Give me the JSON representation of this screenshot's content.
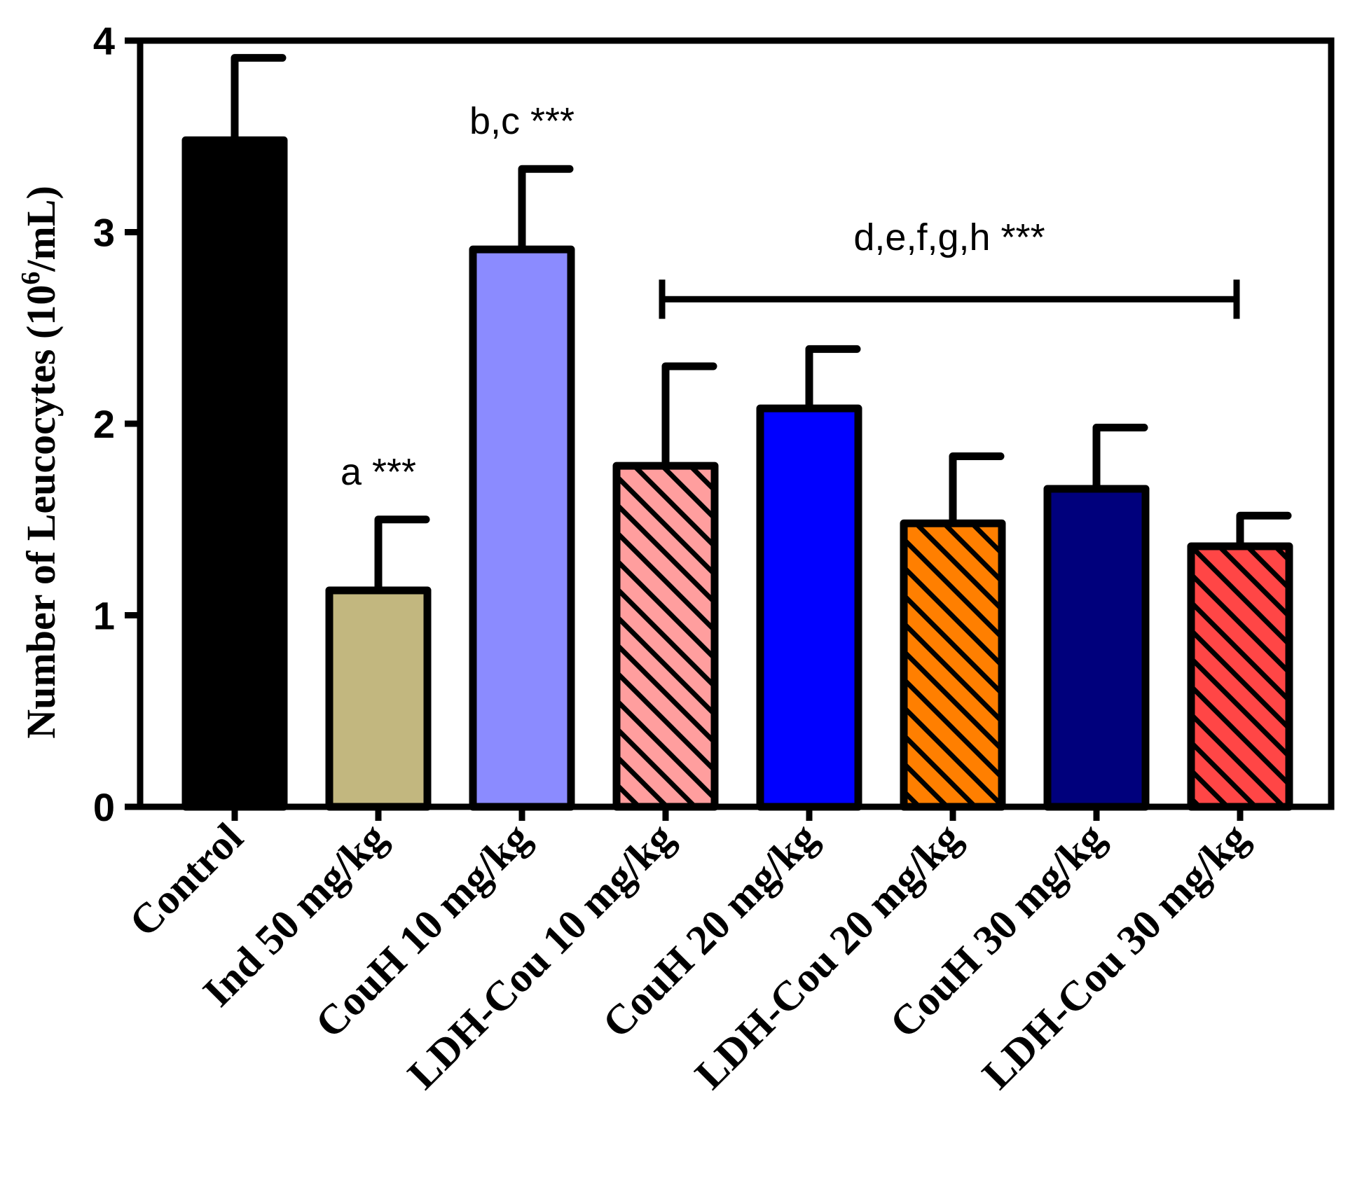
{
  "chart_data": {
    "type": "bar",
    "title": "",
    "xlabel": "",
    "ylabel": "Number of Leucocytes (10",
    "ylabel_sup": "6",
    "ylabel_tail": "/mL)",
    "ylim": [
      0,
      4
    ],
    "yticks": [
      "0",
      "1",
      "2",
      "3",
      "4"
    ],
    "categories": [
      "Control",
      "Ind 50 mg/kg",
      "CouH 10 mg/kg",
      "LDH-Cou 10 mg/kg",
      "CouH 20 mg/kg",
      "LDH-Cou 20 mg/kg",
      "CouH 30 mg/kg",
      "LDH-Cou 30 mg/kg"
    ],
    "values": [
      3.48,
      1.13,
      2.91,
      1.78,
      2.08,
      1.48,
      1.66,
      1.36
    ],
    "errors": [
      0.43,
      0.37,
      0.42,
      0.52,
      0.31,
      0.35,
      0.32,
      0.16
    ],
    "colors": [
      "#000000",
      "#c2b77f",
      "#8b8bff",
      "#ff9e9e",
      "#0000ff",
      "#ff7f00",
      "#00007c",
      "#ff4646"
    ],
    "hatched": [
      false,
      false,
      false,
      true,
      false,
      true,
      false,
      true
    ],
    "annotations": [
      {
        "category": 1,
        "text": "a ***"
      },
      {
        "category": 2,
        "text": "b,c ***"
      }
    ],
    "bracket": {
      "from": 3,
      "to": 7,
      "level": 2.65,
      "text": "d,e,f,g,h ***"
    }
  }
}
